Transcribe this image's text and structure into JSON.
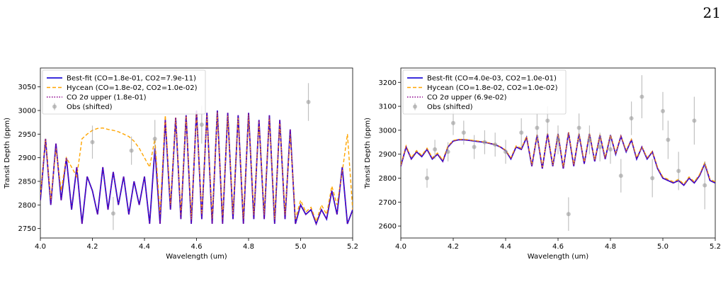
{
  "page": {
    "number": "21"
  },
  "chart_data": [
    {
      "type": "line",
      "xlabel": "Wavelength (um)",
      "ylabel": "Transit Depth (ppm)",
      "xlim": [
        4.0,
        5.2
      ],
      "ylim": [
        2730,
        3090
      ],
      "xticks": [
        4.0,
        4.2,
        4.4,
        4.6,
        4.8,
        5.0,
        5.2
      ],
      "xtick_labels": [
        "4.0",
        "4.2",
        "4.4",
        "4.6",
        "4.8",
        "5.0",
        "5.2"
      ],
      "yticks": [
        2750,
        2800,
        2850,
        2900,
        2950,
        3000,
        3050
      ],
      "ytick_labels": [
        "2750",
        "2800",
        "2850",
        "2900",
        "2950",
        "3000",
        "3050"
      ],
      "legend_position": "top-left",
      "series": [
        {
          "name": "Best-fit (CO=1.8e-01, CO2=7.9e-11)",
          "color": "#1f10d8",
          "style": "solid",
          "x": [
            4.0,
            4.02,
            4.04,
            4.06,
            4.08,
            4.1,
            4.12,
            4.14,
            4.16,
            4.18,
            4.2,
            4.22,
            4.24,
            4.26,
            4.28,
            4.3,
            4.32,
            4.34,
            4.36,
            4.38,
            4.4,
            4.42,
            4.44,
            4.46,
            4.48,
            4.5,
            4.52,
            4.54,
            4.56,
            4.58,
            4.6,
            4.62,
            4.64,
            4.66,
            4.68,
            4.7,
            4.72,
            4.74,
            4.76,
            4.78,
            4.8,
            4.82,
            4.84,
            4.86,
            4.88,
            4.9,
            4.92,
            4.94,
            4.96,
            4.98,
            5.0,
            5.02,
            5.04,
            5.06,
            5.08,
            5.1,
            5.12,
            5.14,
            5.16,
            5.18,
            5.2
          ],
          "y": [
            2810,
            2940,
            2800,
            2930,
            2810,
            2900,
            2790,
            2880,
            2760,
            2860,
            2830,
            2780,
            2880,
            2790,
            2870,
            2800,
            2860,
            2780,
            2850,
            2800,
            2860,
            2760,
            2920,
            2760,
            2980,
            2790,
            2985,
            2770,
            2990,
            2760,
            3000,
            2770,
            2995,
            2760,
            3000,
            2760,
            2995,
            2770,
            2990,
            2760,
            2995,
            2770,
            2980,
            2770,
            2990,
            2760,
            2980,
            2770,
            2960,
            2760,
            2800,
            2780,
            2790,
            2760,
            2790,
            2770,
            2830,
            2780,
            2880,
            2760,
            2790
          ]
        },
        {
          "name": "Hycean (CO=1.8e-02, CO2=1.0e-02)",
          "color": "#ffa500",
          "style": "dashed",
          "x": [
            4.0,
            4.02,
            4.04,
            4.06,
            4.08,
            4.1,
            4.12,
            4.14,
            4.16,
            4.18,
            4.2,
            4.22,
            4.24,
            4.26,
            4.28,
            4.3,
            4.32,
            4.34,
            4.36,
            4.38,
            4.4,
            4.42,
            4.44,
            4.46,
            4.48,
            4.5,
            4.52,
            4.54,
            4.56,
            4.58,
            4.6,
            4.62,
            4.64,
            4.66,
            4.68,
            4.7,
            4.72,
            4.74,
            4.76,
            4.78,
            4.8,
            4.82,
            4.84,
            4.86,
            4.88,
            4.9,
            4.92,
            4.94,
            4.96,
            4.98,
            5.0,
            5.02,
            5.04,
            5.06,
            5.08,
            5.1,
            5.12,
            5.14,
            5.16,
            5.18,
            5.2
          ],
          "y": [
            2820,
            2940,
            2810,
            2920,
            2830,
            2900,
            2880,
            2860,
            2940,
            2950,
            2958,
            2962,
            2963,
            2960,
            2958,
            2955,
            2950,
            2945,
            2935,
            2920,
            2900,
            2880,
            2940,
            2780,
            2990,
            2800,
            2985,
            2780,
            2990,
            2770,
            2995,
            2780,
            2990,
            2770,
            2995,
            2770,
            2990,
            2780,
            2985,
            2770,
            2990,
            2780,
            2975,
            2780,
            2985,
            2770,
            2975,
            2780,
            2950,
            2770,
            2810,
            2785,
            2795,
            2765,
            2800,
            2780,
            2840,
            2800,
            2870,
            2950,
            2790
          ]
        },
        {
          "name": "CO 2σ upper (1.8e-01)",
          "color": "#8b008b",
          "style": "dotted",
          "x": [
            4.0,
            4.02,
            4.04,
            4.06,
            4.08,
            4.1,
            4.12,
            4.14,
            4.16,
            4.18,
            4.2,
            4.22,
            4.24,
            4.26,
            4.28,
            4.3,
            4.32,
            4.34,
            4.36,
            4.38,
            4.4,
            4.42,
            4.44,
            4.46,
            4.48,
            4.5,
            4.52,
            4.54,
            4.56,
            4.58,
            4.6,
            4.62,
            4.64,
            4.66,
            4.68,
            4.7,
            4.72,
            4.74,
            4.76,
            4.78,
            4.8,
            4.82,
            4.84,
            4.86,
            4.88,
            4.9,
            4.92,
            4.94,
            4.96,
            4.98,
            5.0,
            5.02,
            5.04,
            5.06,
            5.08,
            5.1,
            5.12,
            5.14,
            5.16,
            5.18,
            5.2
          ],
          "y": [
            2810,
            2940,
            2800,
            2930,
            2810,
            2900,
            2790,
            2880,
            2760,
            2860,
            2830,
            2780,
            2880,
            2790,
            2870,
            2800,
            2860,
            2780,
            2850,
            2800,
            2860,
            2760,
            2920,
            2760,
            2980,
            2790,
            2985,
            2770,
            2990,
            2760,
            3000,
            2770,
            2995,
            2760,
            3000,
            2760,
            2995,
            2770,
            2990,
            2760,
            2995,
            2770,
            2980,
            2770,
            2990,
            2760,
            2980,
            2770,
            2960,
            2760,
            2800,
            2780,
            2790,
            2760,
            2790,
            2770,
            2830,
            2780,
            2880,
            2760,
            2790
          ]
        },
        {
          "name": "Obs (shifted)",
          "color": "#999999",
          "style": "errorbar",
          "x": [
            4.2,
            4.28,
            4.35,
            4.44,
            4.62,
            5.03
          ],
          "y": [
            2933,
            2782,
            2915,
            2940,
            2970,
            3018
          ],
          "err": [
            35,
            35,
            30,
            40,
            40,
            40
          ]
        }
      ]
    },
    {
      "type": "line",
      "xlabel": "Wavelength (um)",
      "ylabel": "Transit Depth (ppm)",
      "xlim": [
        4.0,
        5.2
      ],
      "ylim": [
        2550,
        3260
      ],
      "xticks": [
        4.0,
        4.2,
        4.4,
        4.6,
        4.8,
        5.0,
        5.2
      ],
      "xtick_labels": [
        "4.0",
        "4.2",
        "4.4",
        "4.6",
        "4.8",
        "5.0",
        "5.2"
      ],
      "yticks": [
        2600,
        2700,
        2800,
        2900,
        3000,
        3100,
        3200
      ],
      "ytick_labels": [
        "2600",
        "2700",
        "2800",
        "2900",
        "3000",
        "3100",
        "3200"
      ],
      "legend_position": "top-left",
      "series": [
        {
          "name": "Best-fit (CO=4.0e-03, CO2=1.0e-01)",
          "color": "#1f10d8",
          "style": "solid",
          "x": [
            4.0,
            4.02,
            4.04,
            4.06,
            4.08,
            4.1,
            4.12,
            4.14,
            4.16,
            4.18,
            4.2,
            4.22,
            4.24,
            4.26,
            4.28,
            4.3,
            4.32,
            4.34,
            4.36,
            4.38,
            4.4,
            4.42,
            4.44,
            4.46,
            4.48,
            4.5,
            4.52,
            4.54,
            4.56,
            4.58,
            4.6,
            4.62,
            4.64,
            4.66,
            4.68,
            4.7,
            4.72,
            4.74,
            4.76,
            4.78,
            4.8,
            4.82,
            4.84,
            4.86,
            4.88,
            4.9,
            4.92,
            4.94,
            4.96,
            4.98,
            5.0,
            5.02,
            5.04,
            5.06,
            5.08,
            5.1,
            5.12,
            5.14,
            5.16,
            5.18,
            5.2
          ],
          "y": [
            2850,
            2930,
            2880,
            2910,
            2890,
            2920,
            2880,
            2900,
            2870,
            2930,
            2955,
            2960,
            2960,
            2958,
            2955,
            2952,
            2950,
            2945,
            2940,
            2930,
            2915,
            2880,
            2930,
            2920,
            2970,
            2850,
            2980,
            2840,
            2985,
            2850,
            2985,
            2840,
            2990,
            2850,
            2985,
            2860,
            2985,
            2870,
            2980,
            2880,
            2980,
            2900,
            2975,
            2910,
            2960,
            2880,
            2930,
            2880,
            2910,
            2840,
            2800,
            2790,
            2780,
            2790,
            2770,
            2800,
            2780,
            2810,
            2860,
            2790,
            2780
          ]
        },
        {
          "name": "Hycean (CO=1.8e-02, CO2=1.0e-02)",
          "color": "#ffa500",
          "style": "dashed",
          "x": [
            4.0,
            4.02,
            4.04,
            4.06,
            4.08,
            4.1,
            4.12,
            4.14,
            4.16,
            4.18,
            4.2,
            4.22,
            4.24,
            4.26,
            4.28,
            4.3,
            4.32,
            4.34,
            4.36,
            4.38,
            4.4,
            4.42,
            4.44,
            4.46,
            4.48,
            4.5,
            4.52,
            4.54,
            4.56,
            4.58,
            4.6,
            4.62,
            4.64,
            4.66,
            4.68,
            4.7,
            4.72,
            4.74,
            4.76,
            4.78,
            4.8,
            4.82,
            4.84,
            4.86,
            4.88,
            4.9,
            4.92,
            4.94,
            4.96,
            4.98,
            5.0,
            5.02,
            5.04,
            5.06,
            5.08,
            5.1,
            5.12,
            5.14,
            5.16,
            5.18,
            5.2
          ],
          "y": [
            2855,
            2935,
            2885,
            2915,
            2895,
            2925,
            2885,
            2905,
            2875,
            2935,
            2957,
            2962,
            2962,
            2960,
            2957,
            2954,
            2951,
            2946,
            2941,
            2931,
            2917,
            2885,
            2935,
            2925,
            2975,
            2855,
            2982,
            2845,
            2987,
            2855,
            2987,
            2845,
            2992,
            2855,
            2987,
            2865,
            2987,
            2875,
            2982,
            2885,
            2982,
            2905,
            2977,
            2915,
            2962,
            2885,
            2932,
            2885,
            2912,
            2845,
            2805,
            2795,
            2785,
            2795,
            2775,
            2805,
            2785,
            2815,
            2865,
            2795,
            2785
          ]
        },
        {
          "name": "CO 2σ upper (6.9e-02)",
          "color": "#8b008b",
          "style": "dotted",
          "x": [
            4.0,
            4.02,
            4.04,
            4.06,
            4.08,
            4.1,
            4.12,
            4.14,
            4.16,
            4.18,
            4.2,
            4.22,
            4.24,
            4.26,
            4.28,
            4.3,
            4.32,
            4.34,
            4.36,
            4.38,
            4.4,
            4.42,
            4.44,
            4.46,
            4.48,
            4.5,
            4.52,
            4.54,
            4.56,
            4.58,
            4.6,
            4.62,
            4.64,
            4.66,
            4.68,
            4.7,
            4.72,
            4.74,
            4.76,
            4.78,
            4.8,
            4.82,
            4.84,
            4.86,
            4.88,
            4.9,
            4.92,
            4.94,
            4.96,
            4.98,
            5.0,
            5.02,
            5.04,
            5.06,
            5.08,
            5.1,
            5.12,
            5.14,
            5.16,
            5.18,
            5.2
          ],
          "y": [
            2850,
            2930,
            2880,
            2910,
            2890,
            2920,
            2880,
            2900,
            2870,
            2930,
            2955,
            2960,
            2960,
            2958,
            2955,
            2952,
            2950,
            2945,
            2940,
            2930,
            2915,
            2880,
            2930,
            2920,
            2970,
            2850,
            2980,
            2840,
            2985,
            2850,
            2985,
            2840,
            2990,
            2850,
            2985,
            2860,
            2985,
            2870,
            2980,
            2880,
            2980,
            2900,
            2975,
            2910,
            2960,
            2880,
            2930,
            2880,
            2910,
            2840,
            2800,
            2790,
            2780,
            2790,
            2770,
            2800,
            2780,
            2810,
            2860,
            2790,
            2780
          ]
        },
        {
          "name": "Obs (shifted)",
          "color": "#999999",
          "style": "errorbar",
          "x": [
            4.1,
            4.13,
            4.18,
            4.2,
            4.24,
            4.28,
            4.32,
            4.36,
            4.4,
            4.46,
            4.52,
            4.56,
            4.6,
            4.64,
            4.68,
            4.72,
            4.76,
            4.8,
            4.84,
            4.88,
            4.92,
            4.96,
            5.0,
            5.02,
            5.06,
            5.12,
            5.16
          ],
          "y": [
            2800,
            2920,
            2910,
            3030,
            2990,
            2930,
            2950,
            2940,
            2910,
            2990,
            3010,
            3040,
            2960,
            2650,
            3010,
            2960,
            2930,
            2920,
            2810,
            3050,
            3140,
            2800,
            3080,
            2960,
            2830,
            3040,
            2770
          ],
          "err": [
            40,
            40,
            40,
            50,
            50,
            50,
            50,
            50,
            50,
            60,
            60,
            60,
            60,
            70,
            60,
            60,
            60,
            60,
            70,
            70,
            90,
            80,
            80,
            80,
            80,
            100,
            100
          ]
        }
      ]
    }
  ]
}
